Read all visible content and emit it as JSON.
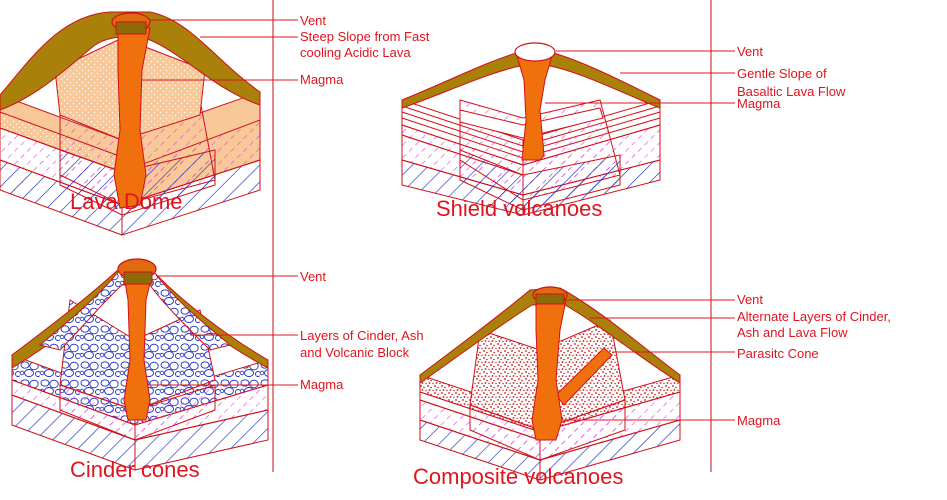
{
  "panels": {
    "lava_dome": {
      "title": "Lava Dome",
      "labels": {
        "vent": "Vent",
        "slope_line1": "Steep Slope from Fast",
        "slope_line2": "cooling Acidic Lava",
        "magma": "Magma"
      }
    },
    "shield": {
      "title": "Shield volcanoes",
      "labels": {
        "vent": "Vent",
        "slope_line1": "Gentle Slope of",
        "slope_line2": "Basaltic Lava Flow",
        "magma": "Magma"
      }
    },
    "cinder": {
      "title": "Cinder cones",
      "labels": {
        "vent": "Vent",
        "layers_line1": "Layers of Cinder, Ash",
        "layers_line2": "and Volcanic Block",
        "magma": "Magma"
      }
    },
    "composite": {
      "title": "Composite volcanoes",
      "labels": {
        "vent": "Vent",
        "layers_line1": "Alternate Layers of Cinder,",
        "layers_line2": "Ash and Lava Flow",
        "parasitic": "Parasitc Cone",
        "magma": "Magma"
      }
    }
  },
  "colors": {
    "text": "#e0141e",
    "crust": "#a8800a",
    "magma": "#f0700e",
    "dome_fill": "#f8c898",
    "ash_layer": "#e040e0",
    "rock_layer": "#2030c0",
    "cinder_blocks": "#2030c0",
    "composite_ash": "#c01818"
  }
}
